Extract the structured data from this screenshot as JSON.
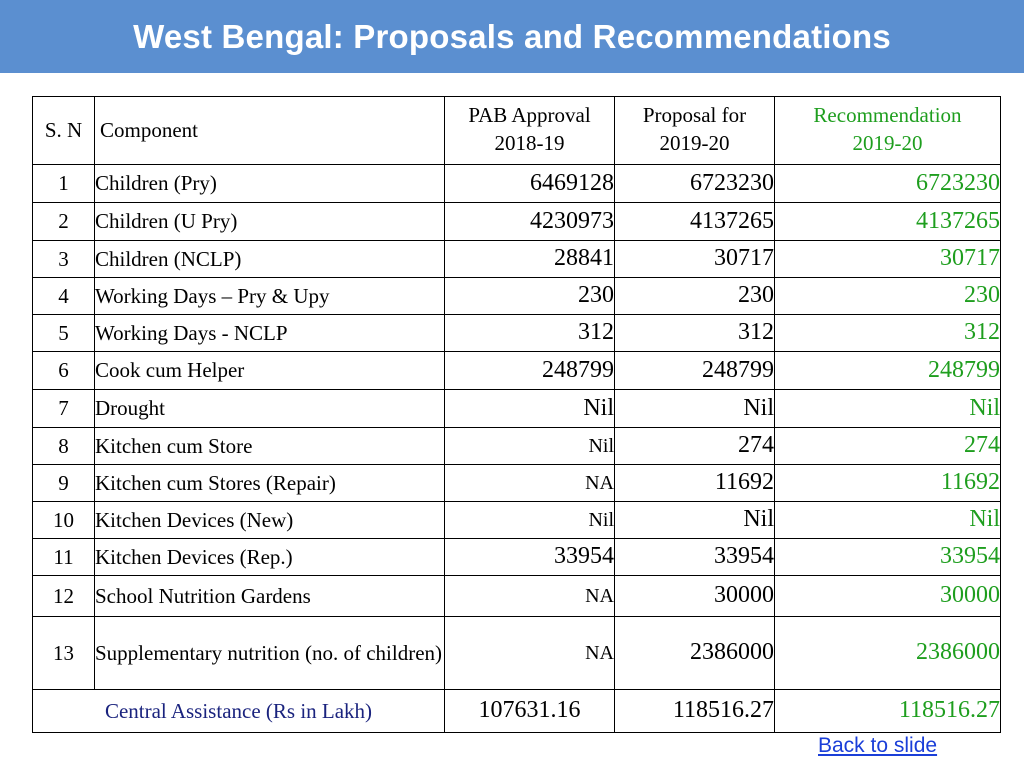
{
  "title": "West Bengal: Proposals and Recommendations",
  "table": {
    "headers": {
      "sn": "S. N",
      "component": "Component",
      "pab_line1": "PAB Approval",
      "pab_line2": "2018-19",
      "proposal_line1": "Proposal for",
      "proposal_line2": "2019-20",
      "rec_line1": "Recommendation",
      "rec_line2": "2019-20"
    },
    "rows": [
      {
        "sn": "1",
        "component": "Children (Pry)",
        "pab": "6469128",
        "proposal": "6723230",
        "recommendation": "6723230"
      },
      {
        "sn": "2",
        "component": "Children (U Pry)",
        "pab": "4230973",
        "proposal": "4137265",
        "recommendation": "4137265"
      },
      {
        "sn": "3",
        "component": "Children (NCLP)",
        "pab": "28841",
        "proposal": "30717",
        "recommendation": "30717"
      },
      {
        "sn": "4",
        "component": "Working Days – Pry & Upy",
        "pab": "230",
        "proposal": "230",
        "recommendation": "230"
      },
      {
        "sn": "5",
        "component": "Working Days - NCLP",
        "pab": "312",
        "proposal": "312",
        "recommendation": "312"
      },
      {
        "sn": "6",
        "component": "Cook cum Helper",
        "pab": "248799",
        "proposal": "248799",
        "recommendation": "248799"
      },
      {
        "sn": "7",
        "component": "Drought",
        "pab": "Nil",
        "proposal": "Nil",
        "recommendation": "Nil"
      },
      {
        "sn": "8",
        "component": "Kitchen cum Store",
        "pab": "Nil",
        "proposal": "274",
        "recommendation": "274"
      },
      {
        "sn": "9",
        "component": "Kitchen cum Stores (Repair)",
        "pab": "NA",
        "proposal": "11692",
        "recommendation": "11692"
      },
      {
        "sn": "10",
        "component": "Kitchen Devices (New)",
        "pab": "Nil",
        "proposal": "Nil",
        "recommendation": "Nil"
      },
      {
        "sn": "11",
        "component": "Kitchen Devices (Rep.)",
        "pab": "33954",
        "proposal": "33954",
        "recommendation": "33954"
      },
      {
        "sn": "12",
        "component": "School Nutrition Gardens",
        "pab": "NA",
        "proposal": "30000",
        "recommendation": "30000"
      },
      {
        "sn": "13",
        "component": "Supplementary nutrition (no. of children)",
        "pab": "NA",
        "proposal": "2386000",
        "recommendation": "2386000"
      }
    ],
    "total": {
      "label": "Central Assistance (Rs in Lakh)",
      "pab": "107631.16",
      "proposal": "118516.27",
      "recommendation": "118516.27"
    }
  },
  "footer": {
    "back_link": "Back to slide"
  },
  "colors": {
    "title_bar": "#5b8fd0",
    "recommendation_text": "#1e9e1e",
    "total_label": "#1a237e",
    "link": "#1a3ed8"
  }
}
